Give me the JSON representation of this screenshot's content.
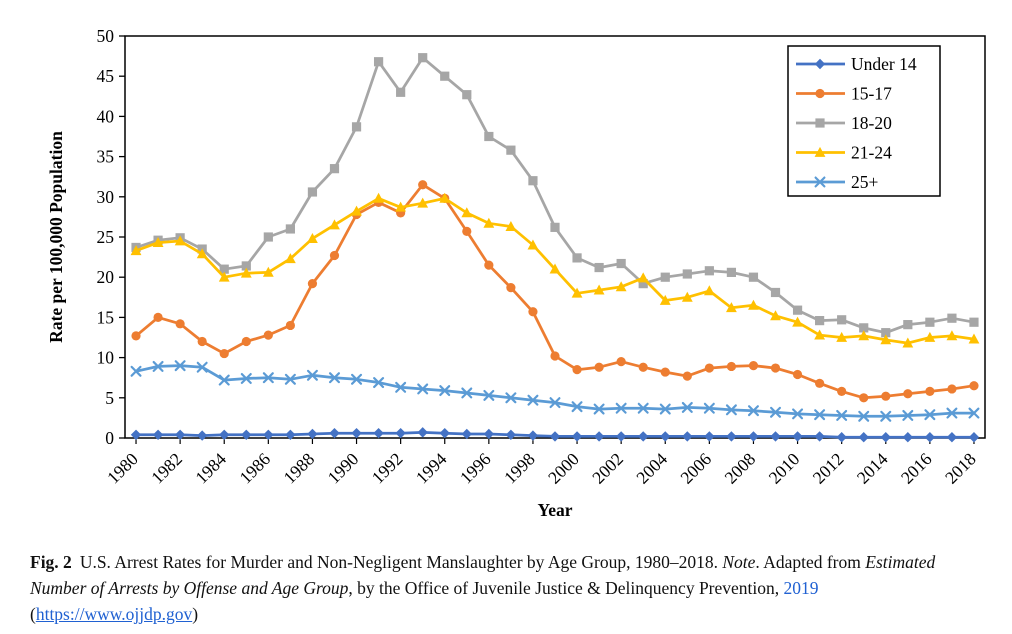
{
  "chart_data": {
    "type": "line",
    "title": "",
    "xlabel": "Year",
    "ylabel": "Rate per 100,000 Population",
    "ylim": [
      0,
      50
    ],
    "ytick_step": 5,
    "xtick_every": 2,
    "grid": false,
    "legend_position": "top-right",
    "x": [
      1980,
      1981,
      1982,
      1983,
      1984,
      1985,
      1986,
      1987,
      1988,
      1989,
      1990,
      1991,
      1992,
      1993,
      1994,
      1995,
      1996,
      1997,
      1998,
      1999,
      2000,
      2001,
      2002,
      2003,
      2004,
      2005,
      2006,
      2007,
      2008,
      2009,
      2010,
      2011,
      2012,
      2013,
      2014,
      2015,
      2016,
      2017,
      2018
    ],
    "series": [
      {
        "name": "Under 14",
        "color": "#4472C4",
        "marker": "diamond",
        "values": [
          0.4,
          0.4,
          0.4,
          0.3,
          0.4,
          0.4,
          0.4,
          0.4,
          0.5,
          0.6,
          0.6,
          0.6,
          0.6,
          0.7,
          0.6,
          0.5,
          0.5,
          0.4,
          0.3,
          0.2,
          0.2,
          0.2,
          0.2,
          0.2,
          0.2,
          0.2,
          0.2,
          0.2,
          0.2,
          0.2,
          0.2,
          0.2,
          0.1,
          0.1,
          0.1,
          0.1,
          0.1,
          0.1,
          0.1
        ]
      },
      {
        "name": "15-17",
        "color": "#ED7D31",
        "marker": "circle",
        "values": [
          12.7,
          15.0,
          14.2,
          12.0,
          10.5,
          12.0,
          12.8,
          14.0,
          19.2,
          22.7,
          27.8,
          29.3,
          28.0,
          31.5,
          29.8,
          25.7,
          21.5,
          18.7,
          15.7,
          10.2,
          8.5,
          8.8,
          9.5,
          8.8,
          8.2,
          7.7,
          8.7,
          8.9,
          9.0,
          8.7,
          7.9,
          6.8,
          5.8,
          5.0,
          5.2,
          5.5,
          5.8,
          6.1,
          6.5
        ]
      },
      {
        "name": "18-20",
        "color": "#A6A6A6",
        "marker": "square",
        "values": [
          23.7,
          24.6,
          24.9,
          23.5,
          21.0,
          21.4,
          25.0,
          26.0,
          30.6,
          33.5,
          38.7,
          46.8,
          43.0,
          47.3,
          45.0,
          42.7,
          37.5,
          35.8,
          32.0,
          26.2,
          22.4,
          21.2,
          21.7,
          19.2,
          20.0,
          20.4,
          20.8,
          20.6,
          20.0,
          18.1,
          15.9,
          14.6,
          14.7,
          13.7,
          13.1,
          14.1,
          14.4,
          14.9,
          14.4
        ]
      },
      {
        "name": "21-24",
        "color": "#FFC000",
        "marker": "triangle",
        "values": [
          23.3,
          24.3,
          24.5,
          22.9,
          20.0,
          20.5,
          20.6,
          22.3,
          24.8,
          26.5,
          28.2,
          29.8,
          28.7,
          29.2,
          29.8,
          28.0,
          26.7,
          26.3,
          24.0,
          21.0,
          18.0,
          18.4,
          18.8,
          19.9,
          17.1,
          17.5,
          18.3,
          16.2,
          16.5,
          15.2,
          14.4,
          12.8,
          12.5,
          12.7,
          12.2,
          11.8,
          12.5,
          12.7,
          12.3
        ]
      },
      {
        "name": "25+",
        "color": "#5B9BD5",
        "marker": "x",
        "values": [
          8.3,
          8.9,
          9.0,
          8.8,
          7.2,
          7.4,
          7.5,
          7.3,
          7.8,
          7.5,
          7.3,
          6.9,
          6.3,
          6.1,
          5.9,
          5.6,
          5.3,
          5.0,
          4.7,
          4.4,
          3.9,
          3.6,
          3.7,
          3.7,
          3.6,
          3.8,
          3.7,
          3.5,
          3.4,
          3.2,
          3.0,
          2.9,
          2.8,
          2.7,
          2.7,
          2.8,
          2.9,
          3.1,
          3.1
        ]
      }
    ]
  },
  "caption": {
    "fig_label": "Fig. 2",
    "title_text": "U.S. Arrest Rates for Murder and Non-Negligent Manslaughter by Age Group, 1980–2018. ",
    "note_label": "Note",
    "after_note": ". Adapted from ",
    "source_title": "Estimated Number of Arrests by Offense and Age Group",
    "by_text": ", by the Office of Juvenile Justice & Delinquency Prevention, ",
    "year_link": "2019",
    "paren_open": " (",
    "url": "https://www.ojjdp.gov",
    "paren_close": ")",
    "link_color": "#2061D2"
  }
}
